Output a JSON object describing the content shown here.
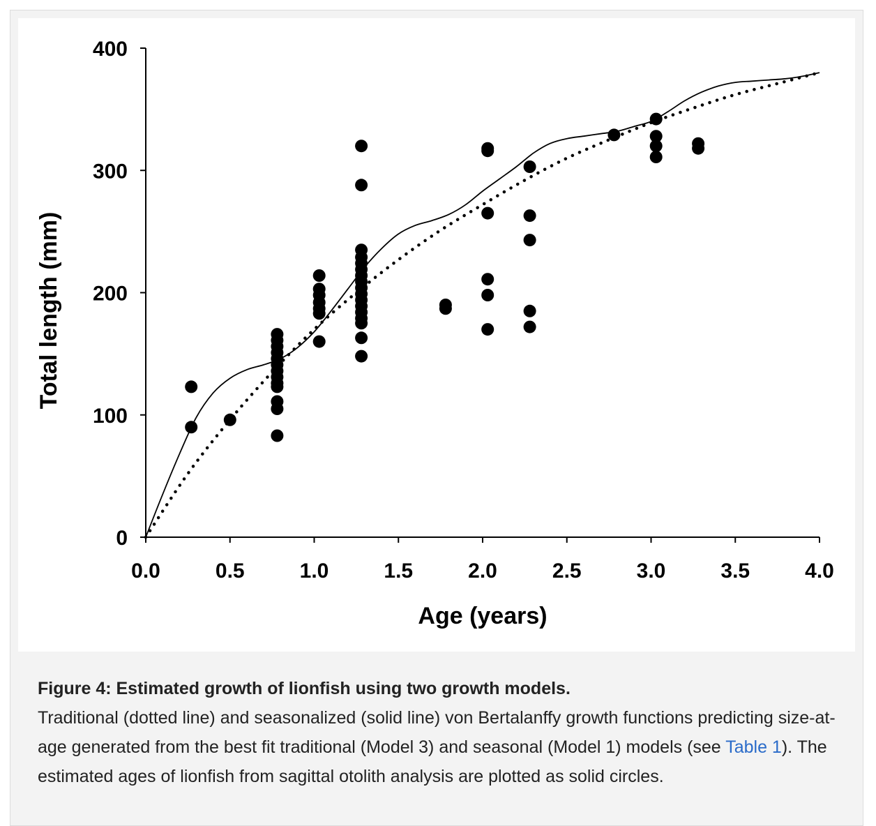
{
  "chart_data": {
    "type": "scatter",
    "title": "",
    "xlabel": "Age (years)",
    "ylabel": "Total length (mm)",
    "xlim": [
      0.0,
      4.0
    ],
    "ylim": [
      0,
      400
    ],
    "xticks": [
      "0.0",
      "0.5",
      "1.0",
      "1.5",
      "2.0",
      "2.5",
      "3.0",
      "3.5",
      "4.0"
    ],
    "yticks": [
      "0",
      "100",
      "200",
      "300",
      "400"
    ],
    "grid": false,
    "legend": "none",
    "series": [
      {
        "kind": "scatter",
        "marker": "solid-circle",
        "color": "#000000",
        "points": [
          [
            0.27,
            123
          ],
          [
            0.27,
            90
          ],
          [
            0.5,
            96
          ],
          [
            0.78,
            166
          ],
          [
            0.78,
            161
          ],
          [
            0.78,
            156
          ],
          [
            0.78,
            151
          ],
          [
            0.78,
            146
          ],
          [
            0.78,
            141
          ],
          [
            0.78,
            136
          ],
          [
            0.78,
            131
          ],
          [
            0.78,
            126
          ],
          [
            0.78,
            123
          ],
          [
            0.78,
            111
          ],
          [
            0.78,
            105
          ],
          [
            0.78,
            83
          ],
          [
            1.03,
            214
          ],
          [
            1.03,
            203
          ],
          [
            1.03,
            198
          ],
          [
            1.03,
            192
          ],
          [
            1.03,
            187
          ],
          [
            1.03,
            183
          ],
          [
            1.03,
            160
          ],
          [
            1.28,
            320
          ],
          [
            1.28,
            288
          ],
          [
            1.28,
            235
          ],
          [
            1.28,
            229
          ],
          [
            1.28,
            224
          ],
          [
            1.28,
            219
          ],
          [
            1.28,
            214
          ],
          [
            1.28,
            209
          ],
          [
            1.28,
            204
          ],
          [
            1.28,
            199
          ],
          [
            1.28,
            194
          ],
          [
            1.28,
            189
          ],
          [
            1.28,
            184
          ],
          [
            1.28,
            179
          ],
          [
            1.28,
            175
          ],
          [
            1.28,
            163
          ],
          [
            1.28,
            148
          ],
          [
            1.78,
            190
          ],
          [
            1.78,
            187
          ],
          [
            2.03,
            318
          ],
          [
            2.03,
            316
          ],
          [
            2.03,
            265
          ],
          [
            2.03,
            211
          ],
          [
            2.03,
            198
          ],
          [
            2.03,
            170
          ],
          [
            2.28,
            303
          ],
          [
            2.28,
            263
          ],
          [
            2.28,
            243
          ],
          [
            2.28,
            185
          ],
          [
            2.28,
            172
          ],
          [
            2.78,
            329
          ],
          [
            3.03,
            342
          ],
          [
            3.03,
            328
          ],
          [
            3.03,
            320
          ],
          [
            3.03,
            311
          ],
          [
            3.28,
            322
          ],
          [
            3.28,
            318
          ]
        ]
      },
      {
        "kind": "line",
        "style": "dotted",
        "color": "#000000",
        "x": [
          0.0,
          0.25,
          0.5,
          0.75,
          1.0,
          1.25,
          1.5,
          1.75,
          2.0,
          2.25,
          2.5,
          2.75,
          3.0,
          3.25,
          3.5,
          3.75,
          4.0
        ],
        "y": [
          0,
          52,
          96,
          135,
          170,
          200,
          227,
          251,
          272,
          292,
          310,
          325,
          339,
          351,
          362,
          371,
          380
        ]
      },
      {
        "kind": "line",
        "style": "solid",
        "color": "#000000",
        "x": [
          0.0,
          0.1,
          0.2,
          0.3,
          0.4,
          0.5,
          0.6,
          0.7,
          0.8,
          0.9,
          1.0,
          1.1,
          1.2,
          1.3,
          1.4,
          1.5,
          1.6,
          1.7,
          1.8,
          1.9,
          2.0,
          2.1,
          2.2,
          2.3,
          2.4,
          2.5,
          2.6,
          2.7,
          2.8,
          2.9,
          3.0,
          3.1,
          3.2,
          3.3,
          3.4,
          3.5,
          3.6,
          3.7,
          3.8,
          3.9,
          4.0
        ],
        "y": [
          0,
          35,
          68,
          98,
          118,
          130,
          137,
          141,
          146,
          155,
          168,
          185,
          203,
          221,
          236,
          248,
          255,
          259,
          264,
          272,
          283,
          293,
          303,
          314,
          322,
          326,
          328,
          330,
          332,
          336,
          340,
          348,
          357,
          364,
          369,
          372,
          373,
          374,
          375,
          377,
          380
        ]
      }
    ]
  },
  "caption": {
    "title": "Figure 4: Estimated growth of lionfish using two growth models.",
    "text_before_link": "Traditional (dotted line) and seasonalized (solid line) von Bertalanffy growth functions predicting size-at-age generated from the best fit traditional (Model 3) and seasonal (Model 1) models (see ",
    "link_text": "Table 1",
    "text_after_link": "). The estimated ages of lionfish from sagittal otolith analysis are plotted as solid circles."
  }
}
